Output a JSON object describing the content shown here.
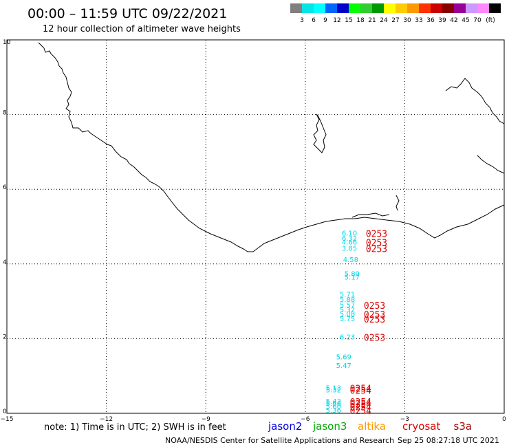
{
  "header": {
    "title": "00:00 – 11:59 UTC 09/22/2021",
    "subtitle": "12 hour collection of altimeter wave heights"
  },
  "legend": {
    "unit": "(ft)",
    "swatches": [
      {
        "label": "",
        "color": "#808080"
      },
      {
        "label": "3",
        "color": "#00e5e5"
      },
      {
        "label": "6",
        "color": "#00ffff"
      },
      {
        "label": "9",
        "color": "#0066ff"
      },
      {
        "label": "12",
        "color": "#0000cc"
      },
      {
        "label": "15",
        "color": "#00ff00"
      },
      {
        "label": "18",
        "color": "#33cc33"
      },
      {
        "label": "21",
        "color": "#009900"
      },
      {
        "label": "24",
        "color": "#ffff00"
      },
      {
        "label": "27",
        "color": "#ffcc00"
      },
      {
        "label": "30",
        "color": "#ff9900"
      },
      {
        "label": "33",
        "color": "#ff3300"
      },
      {
        "label": "36",
        "color": "#cc0000"
      },
      {
        "label": "39",
        "color": "#880000"
      },
      {
        "label": "42",
        "color": "#990099"
      },
      {
        "label": "45",
        "color": "#cc99ff"
      },
      {
        "label": "70",
        "color": "#ff88ff"
      },
      {
        "label": "",
        "color": "#000000"
      }
    ]
  },
  "axes": {
    "x_ticks": [
      "−15",
      "−12",
      "−9",
      "−6",
      "−3",
      "0"
    ],
    "y_ticks": [
      "0",
      "2",
      "4",
      "6",
      "8",
      "10"
    ],
    "x_range": [
      -15,
      0
    ],
    "y_range": [
      0,
      10
    ]
  },
  "observations": {
    "track_color": "#00d8e8",
    "time_color": "#dd0000",
    "points": [
      {
        "lon": -4.9,
        "lat": 4.76,
        "swh": "6.10",
        "time": "0253"
      },
      {
        "lon": -4.9,
        "lat": 4.62,
        "swh": "6.32",
        "time": ""
      },
      {
        "lon": -4.9,
        "lat": 4.52,
        "swh": "4.66",
        "time": "0253"
      },
      {
        "lon": -4.9,
        "lat": 4.36,
        "swh": "3.85",
        "time": "0253"
      },
      {
        "lon": -4.86,
        "lat": 4.05,
        "swh": "4.58",
        "time": ""
      },
      {
        "lon": -4.82,
        "lat": 3.67,
        "swh": "5.89",
        "time": ""
      },
      {
        "lon": -4.82,
        "lat": 3.58,
        "swh": "5.17",
        "time": ""
      },
      {
        "lon": -4.96,
        "lat": 3.12,
        "swh": "5.71",
        "time": ""
      },
      {
        "lon": -4.96,
        "lat": 2.98,
        "swh": "5.88",
        "time": ""
      },
      {
        "lon": -4.96,
        "lat": 2.84,
        "swh": "5.57",
        "time": "0253"
      },
      {
        "lon": -4.96,
        "lat": 2.71,
        "swh": "5.32",
        "time": ""
      },
      {
        "lon": -4.96,
        "lat": 2.6,
        "swh": "5.08",
        "time": "0253"
      },
      {
        "lon": -4.96,
        "lat": 2.47,
        "swh": "5.75",
        "time": "0253"
      },
      {
        "lon": -4.96,
        "lat": 1.98,
        "swh": "6.23",
        "time": "0253"
      },
      {
        "lon": -5.07,
        "lat": 1.45,
        "swh": "5.69",
        "time": ""
      },
      {
        "lon": -5.07,
        "lat": 1.22,
        "swh": "5.47",
        "time": ""
      },
      {
        "lon": -5.38,
        "lat": 0.62,
        "swh": "5.13",
        "time": "0254"
      },
      {
        "lon": -5.38,
        "lat": 0.56,
        "swh": "5.32",
        "time": "0254"
      },
      {
        "lon": -5.38,
        "lat": 0.26,
        "swh": "5.43",
        "time": "0254"
      },
      {
        "lon": -5.38,
        "lat": 0.2,
        "swh": "5.66",
        "time": "0254"
      },
      {
        "lon": -5.38,
        "lat": 0.12,
        "swh": "5.60",
        "time": "0254"
      },
      {
        "lon": -5.38,
        "lat": 0.02,
        "swh": "5.36",
        "time": "0254"
      }
    ]
  },
  "footer": {
    "note": "note: 1) Time is in UTC; 2) SWH is in feet",
    "satellites": [
      {
        "name": "jason2",
        "color": "#0000dd"
      },
      {
        "name": "jason3",
        "color": "#00aa00"
      },
      {
        "name": "altika",
        "color": "#ff9900"
      },
      {
        "name": "cryosat",
        "color": "#dd0000"
      },
      {
        "name": "s3a",
        "color": "#aa0000"
      }
    ],
    "credit": "NOAA/NESDIS Center for Satellite Applications and Research",
    "timestamp": "Sep 25 08:27:18 UTC 2021"
  }
}
